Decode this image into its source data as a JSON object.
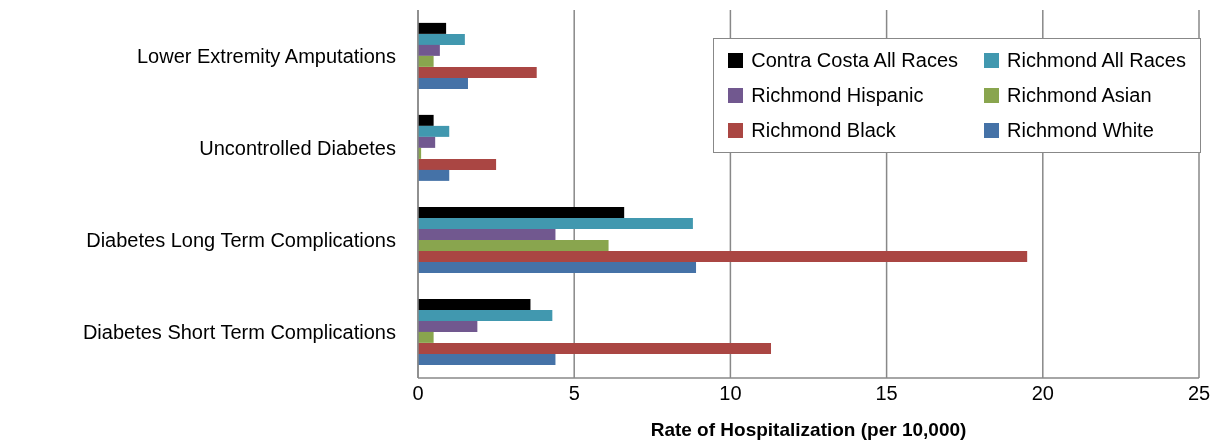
{
  "chart_data": {
    "type": "bar",
    "orientation": "horizontal",
    "xlabel": "Rate of Hospitalization (per 10,000)",
    "categories": [
      "Lower Extremity Amputations",
      "Uncontrolled Diabetes",
      "Diabetes Long Term Complications",
      "Diabetes Short Term Complications"
    ],
    "series": [
      {
        "name": "Contra Costa All Races",
        "color": "#000000",
        "values": [
          0.9,
          0.5,
          6.6,
          3.6
        ]
      },
      {
        "name": "Richmond All Races",
        "color": "#4198af",
        "values": [
          1.5,
          1.0,
          8.8,
          4.3
        ]
      },
      {
        "name": "Richmond Hispanic",
        "color": "#71588f",
        "values": [
          0.7,
          0.55,
          4.4,
          1.9
        ]
      },
      {
        "name": "Richmond Asian",
        "color": "#89a54e",
        "values": [
          0.5,
          0.1,
          6.1,
          0.5
        ]
      },
      {
        "name": "Richmond Black",
        "color": "#aa4643",
        "values": [
          3.8,
          2.5,
          19.5,
          11.3
        ]
      },
      {
        "name": "Richmond White",
        "color": "#4572a7",
        "values": [
          1.6,
          1.0,
          8.9,
          4.4
        ]
      }
    ],
    "xlim": [
      0,
      25
    ],
    "xticks": [
      0,
      5,
      10,
      15,
      20,
      25
    ],
    "grid": "x",
    "legend": "top right"
  }
}
